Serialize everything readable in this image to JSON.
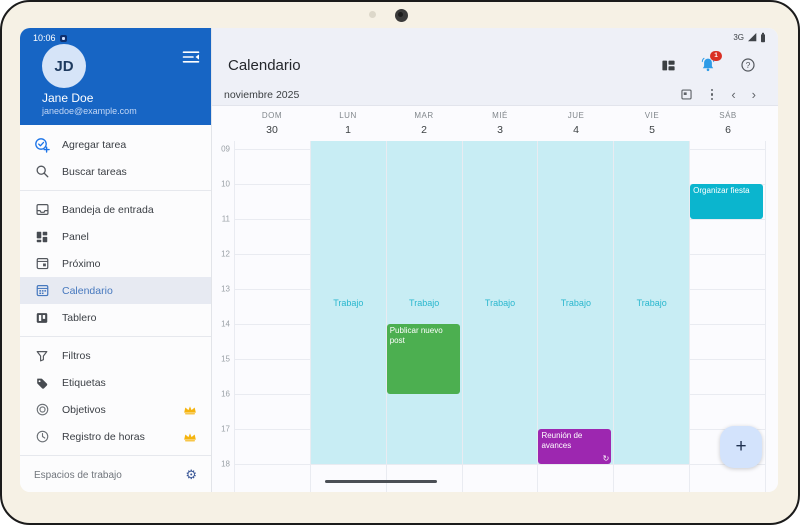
{
  "device": {
    "time": "10:06",
    "network": "3G"
  },
  "sidebar": {
    "avatar_initials": "JD",
    "user_name": "Jane Doe",
    "user_email": "janedoe@example.com",
    "groups": [
      {
        "items": [
          {
            "label": "Agregar tarea",
            "icon": "add-task"
          },
          {
            "label": "Buscar tareas",
            "icon": "search"
          }
        ]
      },
      {
        "items": [
          {
            "label": "Bandeja de entrada",
            "icon": "inbox"
          },
          {
            "label": "Panel",
            "icon": "dashboard"
          },
          {
            "label": "Próximo",
            "icon": "upcoming"
          },
          {
            "label": "Calendario",
            "icon": "calendar",
            "selected": true
          },
          {
            "label": "Tablero",
            "icon": "board"
          }
        ]
      },
      {
        "items": [
          {
            "label": "Filtros",
            "icon": "filter"
          },
          {
            "label": "Etiquetas",
            "icon": "tag"
          },
          {
            "label": "Objetivos",
            "icon": "target",
            "premium": true
          },
          {
            "label": "Registro de horas",
            "icon": "clock",
            "premium": true
          }
        ]
      }
    ],
    "footer_label": "Espacios de trabajo"
  },
  "header": {
    "title": "Calendario",
    "notification_count": "1"
  },
  "toolbar": {
    "month_label": "noviembre 2025"
  },
  "calendar": {
    "days": [
      {
        "name": "DOM",
        "num": "30"
      },
      {
        "name": "LUN",
        "num": "1"
      },
      {
        "name": "MAR",
        "num": "2"
      },
      {
        "name": "MIÉ",
        "num": "3"
      },
      {
        "name": "JUE",
        "num": "4"
      },
      {
        "name": "VIE",
        "num": "5"
      },
      {
        "name": "SÁB",
        "num": "6"
      }
    ],
    "hours": [
      "09",
      "10",
      "11",
      "12",
      "13",
      "14",
      "15",
      "16",
      "17",
      "18"
    ],
    "band_color": "#C8EDF4",
    "band_text_color": "#2AB7CE",
    "events": [
      {
        "title": "Trabajo",
        "day": 1,
        "kind": "band"
      },
      {
        "title": "Trabajo",
        "day": 2,
        "kind": "band"
      },
      {
        "title": "Trabajo",
        "day": 3,
        "kind": "band"
      },
      {
        "title": "Trabajo",
        "day": 4,
        "kind": "band"
      },
      {
        "title": "Trabajo",
        "day": 5,
        "kind": "band"
      },
      {
        "title": "Organizar fiesta",
        "day": 6,
        "start": 10,
        "end": 11,
        "color": "#0BB5CE",
        "kind": "block"
      },
      {
        "title": "Publicar nuevo post",
        "day": 2,
        "start": 14,
        "end": 16,
        "color": "#4CAF50",
        "kind": "block"
      },
      {
        "title": "Reunión de avances",
        "day": 4,
        "start": 17,
        "end": 18,
        "color": "#9D27B0",
        "kind": "block",
        "recurring": true
      }
    ]
  },
  "fab_label": "+",
  "colors": {
    "sidebar_header": "#1765C4",
    "badge_red": "#D93025",
    "crown_gold": "#F5B40F",
    "bell_blue": "#2E9BE6"
  }
}
